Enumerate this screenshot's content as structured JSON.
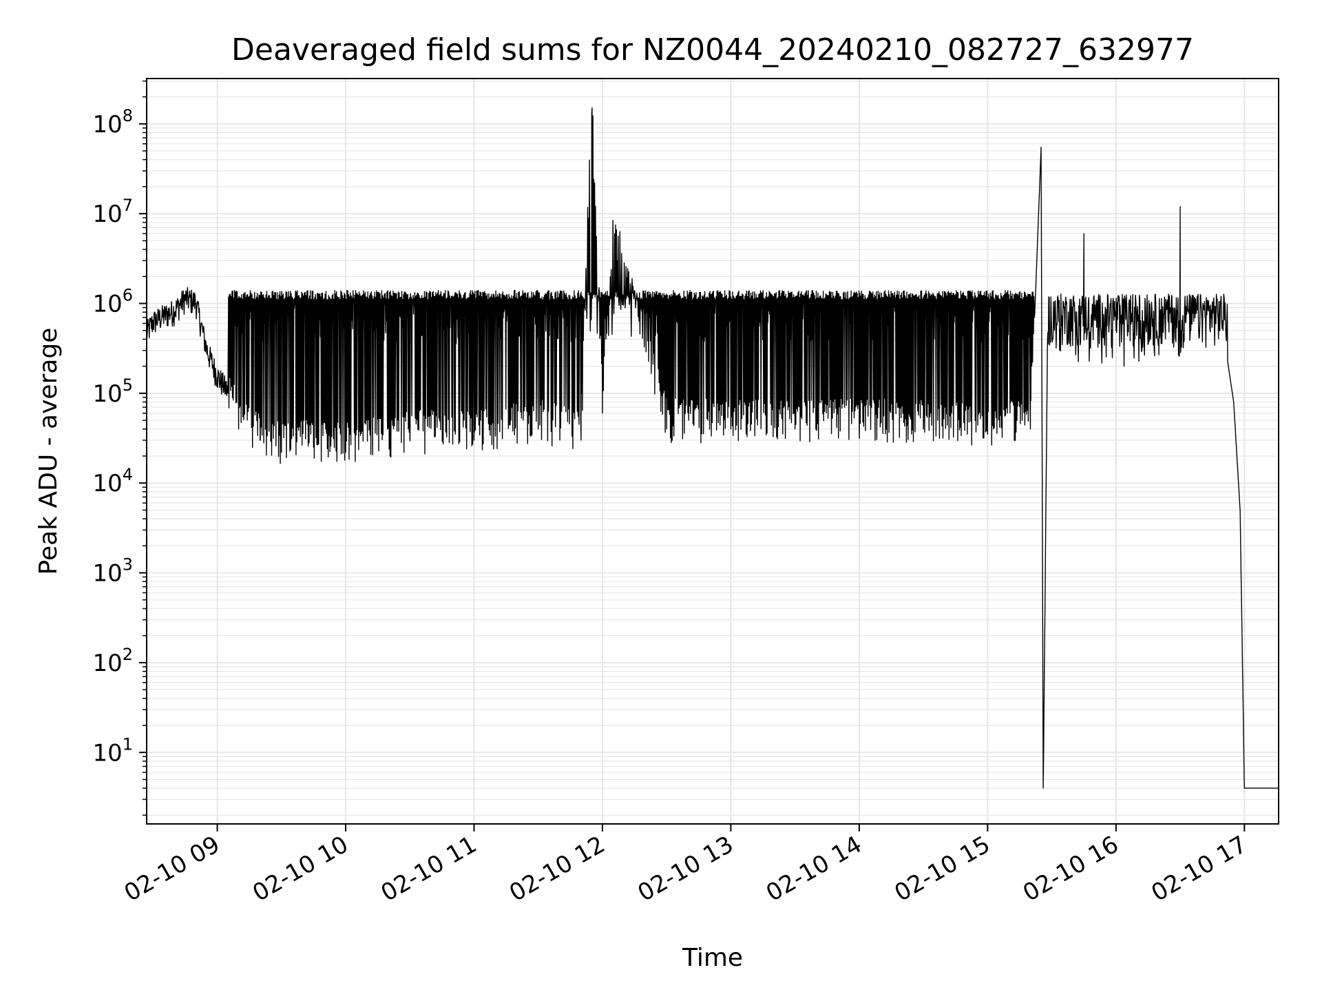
{
  "chart_data": {
    "type": "line",
    "title": "Deaveraged field sums for NZ0044_20240210_082727_632977",
    "xlabel": "Time",
    "ylabel": "Peak ADU - average",
    "y_scale": "log",
    "ylim": [
      1.6,
      320000000.0
    ],
    "xlim": [
      "2024-02-10T08:27",
      "2024-02-10T17:16"
    ],
    "x_ticks": [
      {
        "time": "2024-02-10T09:00",
        "label": "02-10 09"
      },
      {
        "time": "2024-02-10T10:00",
        "label": "02-10 10"
      },
      {
        "time": "2024-02-10T11:00",
        "label": "02-10 11"
      },
      {
        "time": "2024-02-10T12:00",
        "label": "02-10 12"
      },
      {
        "time": "2024-02-10T13:00",
        "label": "02-10 13"
      },
      {
        "time": "2024-02-10T14:00",
        "label": "02-10 14"
      },
      {
        "time": "2024-02-10T15:00",
        "label": "02-10 15"
      },
      {
        "time": "2024-02-10T16:00",
        "label": "02-10 16"
      },
      {
        "time": "2024-02-10T17:00",
        "label": "02-10 17"
      }
    ],
    "y_ticks": [
      {
        "value": 10,
        "base": "10",
        "exp": "1"
      },
      {
        "value": 100,
        "base": "10",
        "exp": "2"
      },
      {
        "value": 1000,
        "base": "10",
        "exp": "3"
      },
      {
        "value": 10000,
        "base": "10",
        "exp": "4"
      },
      {
        "value": 100000,
        "base": "10",
        "exp": "5"
      },
      {
        "value": 1000000,
        "base": "10",
        "exp": "6"
      },
      {
        "value": 10000000,
        "base": "10",
        "exp": "7"
      },
      {
        "value": 100000000,
        "base": "10",
        "exp": "8"
      }
    ],
    "grid": true,
    "line_color": "#000000",
    "grid_color": "#e6e6e6",
    "series": [
      {
        "points": [
          [
            "2024-02-10T08:27",
            450000
          ],
          [
            "2024-02-10T08:30",
            600000
          ],
          [
            "2024-02-10T08:35",
            700000
          ],
          [
            "2024-02-10T08:40",
            800000
          ],
          [
            "2024-02-10T08:45",
            1100000
          ],
          [
            "2024-02-10T08:50",
            1000000
          ],
          [
            "2024-02-10T08:55",
            300000
          ],
          [
            "2024-02-10T09:00",
            150000
          ],
          [
            "2024-02-10T09:05",
            100000
          ],
          [
            "2024-02-10T09:10",
            40000
          ],
          [
            "2024-02-10T09:20",
            30000
          ],
          [
            "2024-02-10T09:30",
            22000
          ],
          [
            "2024-02-10T09:45",
            25000
          ],
          [
            "2024-02-10T10:00",
            22000
          ],
          [
            "2024-02-10T10:30",
            30000
          ],
          [
            "2024-02-10T11:00",
            30000
          ],
          [
            "2024-02-10T11:30",
            40000
          ],
          [
            "2024-02-10T11:50",
            30000
          ],
          [
            "2024-02-10T11:55",
            130000000
          ],
          [
            "2024-02-10T12:00",
            60000
          ],
          [
            "2024-02-10T12:05",
            5500000
          ],
          [
            "2024-02-10T12:30",
            40000
          ],
          [
            "2024-02-10T13:00",
            40000
          ],
          [
            "2024-02-10T13:30",
            40000
          ],
          [
            "2024-02-10T14:00",
            40000
          ],
          [
            "2024-02-10T14:30",
            40000
          ],
          [
            "2024-02-10T15:00",
            35000
          ],
          [
            "2024-02-10T15:20",
            40000
          ],
          [
            "2024-02-10T15:25",
            55000000
          ],
          [
            "2024-02-10T15:26",
            4
          ],
          [
            "2024-02-10T15:28",
            400000
          ],
          [
            "2024-02-10T15:45",
            6000000
          ],
          [
            "2024-02-10T16:00",
            500000
          ],
          [
            "2024-02-10T16:20",
            400000
          ],
          [
            "2024-02-10T16:30",
            12000000
          ],
          [
            "2024-02-10T16:35",
            500000
          ],
          [
            "2024-02-10T16:50",
            500000
          ],
          [
            "2024-02-10T16:55",
            80000
          ],
          [
            "2024-02-10T16:58",
            5000
          ],
          [
            "2024-02-10T17:00",
            4
          ],
          [
            "2024-02-10T17:16",
            4
          ]
        ]
      }
    ]
  }
}
